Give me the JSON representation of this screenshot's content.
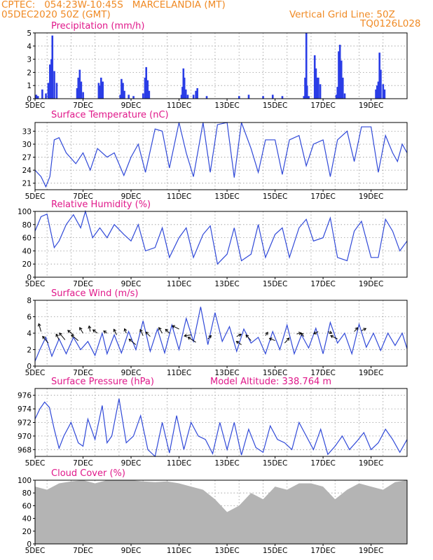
{
  "header": {
    "left1": "CPTEC:   054:23W-10:45S   MARCELANDIA (MT)",
    "left2": "05DEC2020 50Z (GMT)",
    "right1": "Vertical Grid Line: 50Z",
    "right2": "TQ0126L028"
  },
  "colors": {
    "header": "#f08a24",
    "title": "#e0188a",
    "series": "#3049d8",
    "bars": "#2a3de6",
    "cloud": "#b4b4b4"
  },
  "chart_data": [
    {
      "id": "precip",
      "type": "bar",
      "title": "Precipitation (mm/h)",
      "xlabels": [
        "5DEC",
        "7DEC",
        "9DEC",
        "11DEC",
        "13DEC",
        "15DEC",
        "17DEC",
        "19DEC"
      ],
      "xlim": [
        0,
        15.5
      ],
      "ylim": [
        0,
        5
      ],
      "yticks": [
        0,
        1,
        2,
        3,
        4,
        5
      ],
      "bars": [
        [
          0.05,
          0.3
        ],
        [
          0.12,
          0.2
        ],
        [
          0.3,
          0.7
        ],
        [
          0.45,
          0.4
        ],
        [
          0.55,
          1.2
        ],
        [
          0.62,
          2.6
        ],
        [
          0.68,
          3.0
        ],
        [
          0.72,
          4.8
        ],
        [
          0.8,
          2.1
        ],
        [
          0.9,
          1.2
        ],
        [
          1.75,
          0.8
        ],
        [
          1.8,
          1.6
        ],
        [
          1.86,
          2.2
        ],
        [
          1.92,
          1.3
        ],
        [
          2.0,
          0.5
        ],
        [
          2.65,
          1.2
        ],
        [
          2.7,
          1.0
        ],
        [
          2.75,
          1.6
        ],
        [
          2.82,
          1.3
        ],
        [
          3.55,
          0.3
        ],
        [
          3.6,
          1.5
        ],
        [
          3.66,
          1.2
        ],
        [
          3.72,
          0.6
        ],
        [
          3.9,
          0.3
        ],
        [
          4.1,
          0.2
        ],
        [
          4.5,
          0.4
        ],
        [
          4.58,
          1.6
        ],
        [
          4.63,
          2.4
        ],
        [
          4.69,
          1.4
        ],
        [
          4.75,
          0.6
        ],
        [
          6.1,
          0.3
        ],
        [
          6.14,
          0.9
        ],
        [
          6.18,
          2.3
        ],
        [
          6.22,
          1.6
        ],
        [
          6.28,
          0.7
        ],
        [
          6.36,
          0.3
        ],
        [
          6.6,
          0.3
        ],
        [
          6.7,
          0.6
        ],
        [
          6.76,
          0.8
        ],
        [
          7.15,
          0.2
        ],
        [
          8.5,
          0.2
        ],
        [
          8.9,
          0.3
        ],
        [
          9.5,
          0.2
        ],
        [
          9.9,
          0.3
        ],
        [
          10.3,
          0.2
        ],
        [
          11.2,
          0.2
        ],
        [
          11.25,
          1.6
        ],
        [
          11.3,
          5.0
        ],
        [
          11.33,
          1.0
        ],
        [
          11.4,
          0.2
        ],
        [
          11.65,
          3.3
        ],
        [
          11.7,
          2.3
        ],
        [
          11.75,
          1.6
        ],
        [
          11.8,
          1.6
        ],
        [
          11.88,
          1.1
        ],
        [
          12.55,
          0.3
        ],
        [
          12.6,
          0.9
        ],
        [
          12.65,
          3.6
        ],
        [
          12.7,
          4.1
        ],
        [
          12.76,
          2.9
        ],
        [
          12.82,
          1.6
        ],
        [
          12.9,
          0.4
        ],
        [
          14.2,
          0.7
        ],
        [
          14.25,
          1.0
        ],
        [
          14.3,
          1.3
        ],
        [
          14.35,
          3.5
        ],
        [
          14.4,
          2.2
        ],
        [
          14.5,
          1.1
        ],
        [
          14.56,
          0.7
        ]
      ]
    },
    {
      "id": "temp",
      "type": "line",
      "title": "Surface Temperature (nC)",
      "xlabels": [
        "5DEC",
        "7DEC",
        "9DEC",
        "11DEC",
        "13DEC",
        "15DEC",
        "17DEC",
        "19DEC"
      ],
      "xlim": [
        0,
        15.5
      ],
      "ylim": [
        19.5,
        35
      ],
      "yticks": [
        21,
        24,
        27,
        30,
        33
      ],
      "x": [
        0,
        0.25,
        0.45,
        0.62,
        0.8,
        1.0,
        1.3,
        1.7,
        2.0,
        2.3,
        2.6,
        3.0,
        3.3,
        3.7,
        4.0,
        4.3,
        4.6,
        5.0,
        5.3,
        5.6,
        6.0,
        6.3,
        6.6,
        7.0,
        7.3,
        7.6,
        8.0,
        8.3,
        8.6,
        9.0,
        9.3,
        9.6,
        10.0,
        10.3,
        10.6,
        11.0,
        11.3,
        11.6,
        12.0,
        12.3,
        12.6,
        13.0,
        13.3,
        13.6,
        14.0,
        14.3,
        14.6,
        14.9,
        15.1,
        15.3,
        15.5
      ],
      "y": [
        24,
        22.5,
        20.2,
        22.5,
        31,
        31.5,
        28,
        25.5,
        28,
        24,
        29,
        27,
        28,
        22.8,
        27,
        30,
        23.5,
        33.5,
        33,
        24.5,
        35,
        28,
        22.5,
        35,
        23.5,
        34.5,
        35,
        22.3,
        35,
        29,
        23.5,
        31,
        31,
        23,
        31,
        32,
        25,
        30,
        31,
        22.5,
        31,
        33,
        26,
        34,
        34,
        23.5,
        32,
        28,
        26,
        30,
        28
      ]
    },
    {
      "id": "rh",
      "type": "line",
      "title": "Relative Humidity (%)",
      "xlabels": [
        "5DEC",
        "7DEC",
        "9DEC",
        "11DEC",
        "13DEC",
        "15DEC",
        "17DEC",
        "19DEC"
      ],
      "xlim": [
        0,
        15.5
      ],
      "ylim": [
        0,
        100
      ],
      "yticks": [
        0,
        20,
        40,
        60,
        80,
        100
      ],
      "x": [
        0,
        0.25,
        0.5,
        0.65,
        0.8,
        1.0,
        1.3,
        1.6,
        1.9,
        2.1,
        2.4,
        2.7,
        3.0,
        3.3,
        3.7,
        4.0,
        4.3,
        4.6,
        5.0,
        5.3,
        5.6,
        6.0,
        6.3,
        6.6,
        7.0,
        7.3,
        7.6,
        8.0,
        8.3,
        8.6,
        9.0,
        9.3,
        9.6,
        10.0,
        10.3,
        10.6,
        11.0,
        11.3,
        11.6,
        12.0,
        12.3,
        12.6,
        13.0,
        13.3,
        13.6,
        14.0,
        14.3,
        14.6,
        14.9,
        15.2,
        15.5
      ],
      "y": [
        70,
        92,
        96,
        70,
        45,
        55,
        80,
        95,
        75,
        100,
        60,
        75,
        60,
        80,
        65,
        55,
        80,
        40,
        45,
        75,
        30,
        60,
        75,
        30,
        65,
        78,
        20,
        35,
        75,
        25,
        35,
        80,
        30,
        65,
        75,
        30,
        75,
        88,
        55,
        60,
        90,
        30,
        25,
        70,
        85,
        30,
        30,
        88,
        70,
        40,
        55
      ]
    },
    {
      "id": "wind",
      "type": "line",
      "title": "Surface Wind (m/s)",
      "xlabels": [
        "5DEC",
        "7DEC",
        "9DEC",
        "11DEC",
        "13DEC",
        "15DEC",
        "17DEC",
        "19DEC"
      ],
      "xlim": [
        0,
        15.5
      ],
      "ylim": [
        0,
        8
      ],
      "yticks": [
        0,
        2,
        4,
        6,
        8
      ],
      "x": [
        0,
        0.2,
        0.45,
        0.7,
        1.0,
        1.3,
        1.6,
        1.9,
        2.2,
        2.5,
        2.8,
        3.0,
        3.3,
        3.6,
        3.9,
        4.2,
        4.5,
        4.8,
        5.1,
        5.4,
        5.7,
        6.0,
        6.3,
        6.6,
        6.9,
        7.2,
        7.5,
        7.8,
        8.1,
        8.4,
        8.7,
        9.0,
        9.3,
        9.6,
        9.9,
        10.2,
        10.5,
        10.8,
        11.1,
        11.4,
        11.7,
        12.0,
        12.3,
        12.6,
        12.9,
        13.2,
        13.5,
        13.8,
        14.1,
        14.4,
        14.7,
        15.0,
        15.3,
        15.5
      ],
      "y": [
        0.6,
        2.0,
        3.5,
        1.2,
        3.3,
        1.5,
        3.5,
        2.0,
        3.0,
        1.3,
        4.0,
        1.5,
        3.8,
        1.6,
        4.2,
        2.0,
        5.5,
        1.8,
        4.5,
        1.6,
        5.0,
        2.0,
        5.8,
        3.0,
        7.2,
        2.6,
        6.5,
        3.0,
        4.8,
        1.8,
        4.5,
        2.8,
        3.5,
        1.5,
        4.2,
        2.0,
        5.0,
        1.5,
        3.8,
        2.2,
        4.6,
        1.5,
        5.3,
        2.8,
        4.0,
        1.5,
        5.1,
        2.3,
        4.0,
        1.9,
        4.0,
        2.5,
        4.0,
        2.1
      ],
      "vectors": [
        [
          0.25,
          4.2,
          -0.4,
          1.4
        ],
        [
          0.55,
          2.8,
          -1.0,
          1.2
        ],
        [
          1.0,
          3.2,
          -0.5,
          1.0
        ],
        [
          1.25,
          3.2,
          -1.0,
          1.2
        ],
        [
          1.6,
          3.8,
          -1.0,
          0.8
        ],
        [
          1.8,
          3.1,
          -1.2,
          1.0
        ],
        [
          2.0,
          4.0,
          -0.6,
          1.0
        ],
        [
          2.3,
          4.2,
          -0.2,
          1.0
        ],
        [
          2.6,
          4.0,
          -0.8,
          0.6
        ],
        [
          3.0,
          4.0,
          -0.6,
          0.4
        ],
        [
          3.4,
          3.8,
          -0.5,
          1.0
        ],
        [
          3.8,
          4.0,
          -0.3,
          0.8
        ],
        [
          4.2,
          2.6,
          -1.2,
          1.0
        ],
        [
          4.5,
          3.7,
          -0.5,
          1.1
        ],
        [
          4.8,
          3.6,
          -0.8,
          0.8
        ],
        [
          5.3,
          4.0,
          -0.6,
          1.0
        ],
        [
          5.6,
          4.0,
          -0.7,
          0.7
        ],
        [
          6.0,
          4.5,
          -1.2,
          0.6
        ],
        [
          6.5,
          3.8,
          -1.2,
          -0.2
        ],
        [
          6.7,
          2.9,
          -1.4,
          0.9
        ],
        [
          7.2,
          3.3,
          0.6,
          0.6
        ],
        [
          8.4,
          3.6,
          0.8,
          0.4
        ],
        [
          8.6,
          2.6,
          -0.9,
          0.6
        ],
        [
          9.0,
          3.1,
          -0.9,
          1.0
        ],
        [
          9.6,
          3.7,
          0.4,
          0.6
        ],
        [
          10.0,
          3.1,
          -1.0,
          0.4
        ],
        [
          10.4,
          2.8,
          0.8,
          0.9
        ],
        [
          10.9,
          3.9,
          0.8,
          0.2
        ],
        [
          11.2,
          3.6,
          -0.5,
          0.6
        ],
        [
          11.8,
          4.2,
          -0.8,
          -0.4
        ],
        [
          12.2,
          4.2,
          0.7,
          -0.3
        ],
        [
          12.6,
          3.3,
          -1.2,
          0.6
        ],
        [
          13.3,
          4.2,
          0.6,
          0.7
        ],
        [
          13.6,
          4.3,
          0.8,
          0.4
        ]
      ]
    },
    {
      "id": "pres",
      "type": "line",
      "title": "Surface Pressure (hPa)",
      "annotation": "Model Altitude: 338.764 m",
      "xlabels": [
        "5DEC",
        "7DEC",
        "9DEC",
        "11DEC",
        "13DEC",
        "15DEC",
        "17DEC",
        "19DEC"
      ],
      "xlim": [
        0,
        15.5
      ],
      "ylim": [
        967,
        977
      ],
      "yticks": [
        968,
        970,
        972,
        974,
        976
      ],
      "x": [
        0,
        0.2,
        0.4,
        0.6,
        0.8,
        1.0,
        1.2,
        1.5,
        1.8,
        2.0,
        2.2,
        2.5,
        2.8,
        3.0,
        3.2,
        3.5,
        3.8,
        4.1,
        4.4,
        4.7,
        5.0,
        5.3,
        5.6,
        5.9,
        6.2,
        6.5,
        6.8,
        7.1,
        7.4,
        7.7,
        8.0,
        8.3,
        8.6,
        8.9,
        9.2,
        9.5,
        9.8,
        10.1,
        10.4,
        10.7,
        11.0,
        11.3,
        11.6,
        11.9,
        12.2,
        12.5,
        12.8,
        13.1,
        13.4,
        13.7,
        14.0,
        14.3,
        14.6,
        14.9,
        15.2,
        15.5
      ],
      "y": [
        972.5,
        974,
        975,
        974.2,
        971,
        968.2,
        970,
        972,
        969,
        968.5,
        972.5,
        969.5,
        974.5,
        969,
        970,
        975.5,
        969,
        970,
        973,
        968,
        967,
        972,
        967.5,
        973,
        968,
        972,
        970,
        969.5,
        967.4,
        972,
        968,
        972,
        967.2,
        971,
        968.3,
        967.6,
        971.5,
        969.5,
        969,
        968,
        972,
        970,
        968,
        971,
        967.3,
        968.5,
        970,
        968,
        969.2,
        970.5,
        968,
        969,
        971,
        969.5,
        967.6,
        969.5
      ]
    },
    {
      "id": "cloud",
      "type": "area",
      "title": "Cloud Cover (%)",
      "xlabels": [
        "5DEC",
        "7DEC",
        "9DEC",
        "11DEC",
        "13DEC",
        "15DEC",
        "17DEC",
        "19DEC"
      ],
      "xlim": [
        0,
        15.5
      ],
      "ylim": [
        0,
        100
      ],
      "yticks": [
        0,
        20,
        40,
        60,
        80,
        100
      ],
      "x": [
        0,
        0.5,
        1.0,
        1.5,
        2.0,
        2.5,
        3.0,
        3.5,
        4.0,
        4.5,
        5.0,
        5.5,
        6.0,
        6.5,
        7.0,
        7.5,
        8.0,
        8.5,
        9.0,
        9.5,
        10.0,
        10.5,
        11.0,
        11.5,
        12.0,
        12.5,
        13.0,
        13.5,
        14.0,
        14.5,
        15.0,
        15.5
      ],
      "y": [
        90,
        85,
        95,
        98,
        100,
        95,
        100,
        100,
        100,
        98,
        97,
        98,
        95,
        90,
        85,
        70,
        50,
        60,
        80,
        70,
        90,
        85,
        95,
        95,
        90,
        70,
        85,
        95,
        90,
        85,
        97,
        100
      ]
    }
  ]
}
